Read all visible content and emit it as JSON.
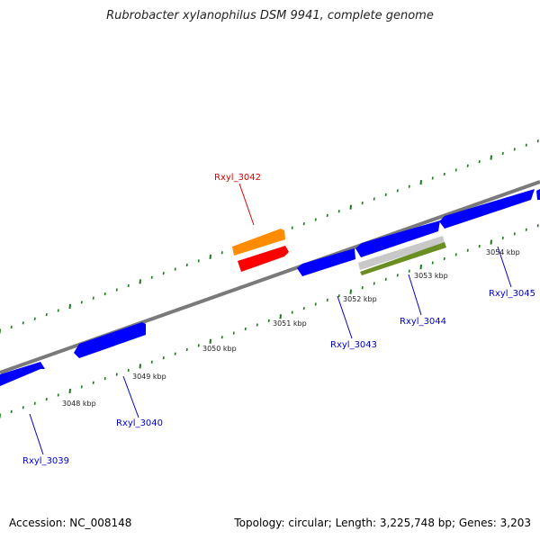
{
  "title": "Rubrobacter xylanophilus DSM 9941, complete genome",
  "footer": {
    "accession": "Accession: NC_008148",
    "summary": "Topology: circular; Length: 3,225,748 bp; Genes: 3,203"
  },
  "kbp_labels": [
    "3048 kbp",
    "3049 kbp",
    "3050 kbp",
    "3051 kbp",
    "3052 kbp",
    "3053 kbp",
    "3054 kbp"
  ],
  "genes": [
    {
      "id": "Rxyl_3039",
      "label": "Rxyl_3039",
      "strand": "reverse",
      "color": "#0000ff"
    },
    {
      "id": "Rxyl_3040",
      "label": "Rxyl_3040",
      "strand": "reverse",
      "color": "#0000ff"
    },
    {
      "id": "Rxyl_3042",
      "label": "Rxyl_3042",
      "strand": "forward",
      "color": "#ff0000",
      "highlight": true
    },
    {
      "id": "Rxyl_3043",
      "label": "Rxyl_3043",
      "strand": "reverse",
      "color": "#0000ff"
    },
    {
      "id": "Rxyl_3044",
      "label": "Rxyl_3044",
      "strand": "none",
      "color": "#6b8e23"
    },
    {
      "id": "Rxyl_3045",
      "label": "Rxyl_3045",
      "strand": "forward",
      "color": "#0000ff"
    }
  ],
  "colors": {
    "backbone": "#777777",
    "tick": "#1a7a1a",
    "gene_blue": "#0000ff",
    "gene_red": "#ff0000",
    "gene_orange": "#ff8c00",
    "gene_olive": "#6b8e23",
    "gene_grey": "#bdbdbd",
    "label_blue": "#0000cc",
    "label_red": "#dd0000"
  }
}
